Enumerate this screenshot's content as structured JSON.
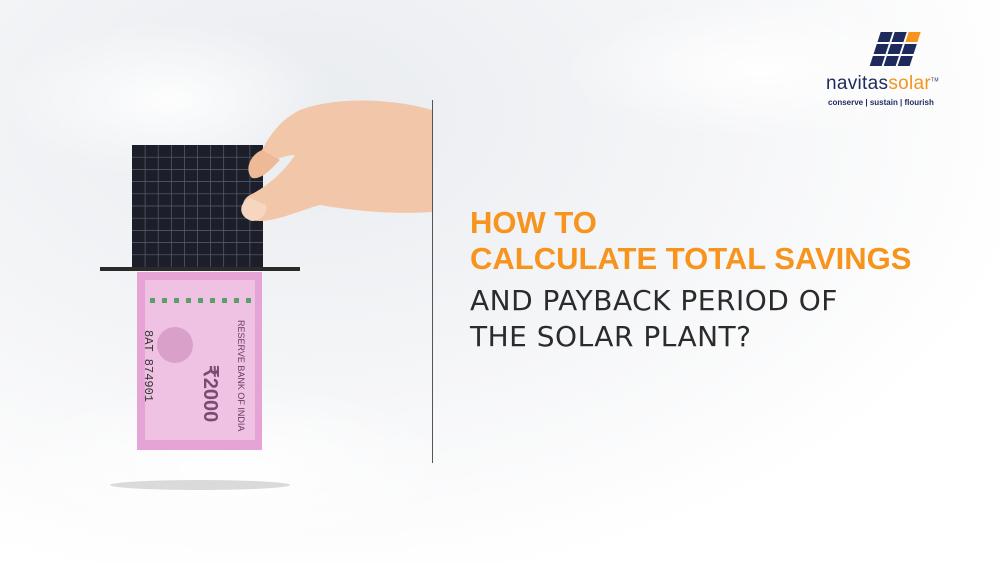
{
  "headline": {
    "line1": "HOW TO",
    "line2": "CALCULATE TOTAL SAVINGS",
    "line3": "AND PAYBACK PERIOD OF",
    "line4": "THE SOLAR PLANT?"
  },
  "logo": {
    "name_part1": "navitas",
    "name_part2": "solar",
    "trademark": "TM",
    "tagline": "conserve | sustain | flourish"
  },
  "illustration": {
    "banknote_text": [
      "RESERVE BANK OF INDIA",
      "₹2000",
      "8AT 874901"
    ]
  },
  "colors": {
    "accent_orange": "#f7941d",
    "brand_navy": "#1f2a5c",
    "banknote_pink": "#e6a3d6",
    "panel_dark": "#1c1f2a"
  },
  "icons": [
    "solar-panel-logo-icon"
  ]
}
